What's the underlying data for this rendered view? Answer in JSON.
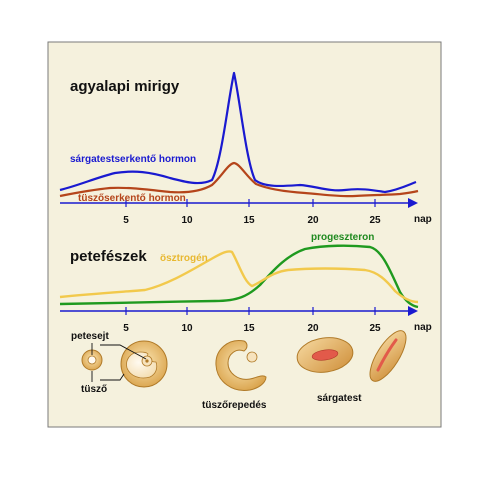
{
  "pituitary": {
    "title": "agyalapi mirigy",
    "lh_label": "sárgatestserkentő hormon",
    "fsh_label": "tüszőserkentő hormon",
    "axis_unit": "nap",
    "ticks": [
      "5",
      "10",
      "15",
      "20",
      "25"
    ]
  },
  "ovary": {
    "title": "petefészek",
    "estrogen_label": "ösztrogén",
    "progesterone_label": "progeszteron",
    "axis_unit": "nap",
    "ticks": [
      "5",
      "10",
      "15",
      "20",
      "25"
    ]
  },
  "follicle_stages": {
    "egg_label": "petesejt",
    "follicle_label": "tüsző",
    "ovulation_label": "tüszőrepedés",
    "corpus_luteum_label": "sárgatest"
  },
  "colors": {
    "panel_bg": "#f5f1dd",
    "lh": "#1a1ad0",
    "fsh": "#b5451b",
    "estrogen": "#f2c94c",
    "progesterone": "#1f9a1f",
    "axis": "#1a1ad0",
    "progesterone_text": "#1f8a1f",
    "estrogen_text": "#e8b830",
    "lh_text": "#1a1ad0",
    "fsh_text": "#b5451b"
  }
}
